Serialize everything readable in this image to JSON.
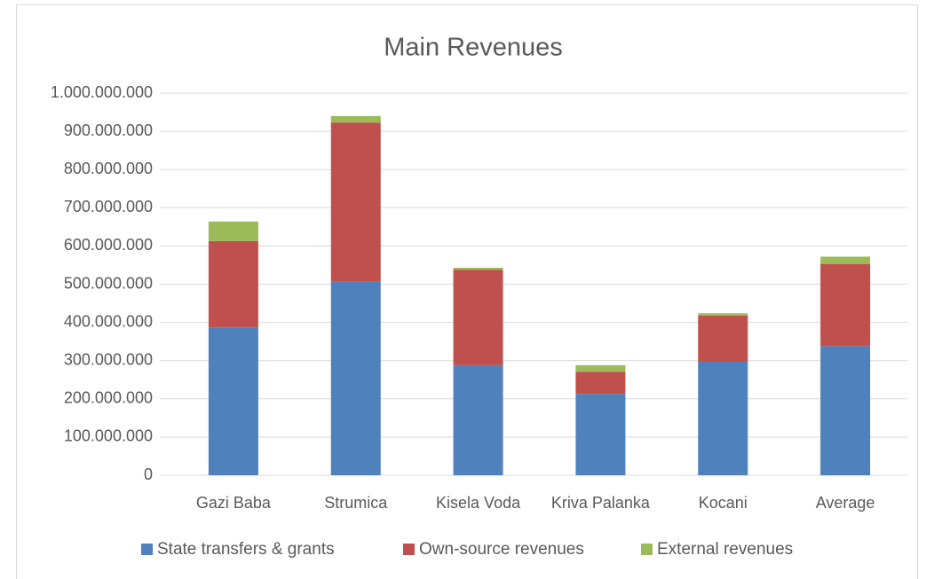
{
  "chart_data": {
    "type": "stacked_bar",
    "title": "Main Revenues",
    "categories": [
      "Gazi Baba",
      "Strumica",
      "Kisela Voda",
      "Kriva Palanka",
      "Kocani",
      "Average"
    ],
    "series": [
      {
        "name": "State transfers & grants",
        "color": "#4f81bd",
        "values": [
          387000000,
          508000000,
          288000000,
          213000000,
          297000000,
          338000000
        ]
      },
      {
        "name": "Own-source revenues",
        "color": "#c0504d",
        "values": [
          226000000,
          415000000,
          250000000,
          58000000,
          121000000,
          215000000
        ]
      },
      {
        "name": "External revenues",
        "color": "#9bbb59",
        "values": [
          51000000,
          17000000,
          5000000,
          17000000,
          6000000,
          19000000
        ]
      }
    ],
    "ylim": [
      0,
      1000000000
    ],
    "yticks": [
      0,
      {
        "value": 100000000,
        "label": "100.000.000"
      },
      {
        "value": 200000000,
        "label": "200.000.000"
      },
      {
        "value": 300000000,
        "label": "300.000.000"
      },
      {
        "value": 400000000,
        "label": "400.000.000"
      },
      {
        "value": 500000000,
        "label": "500.000.000"
      },
      {
        "value": 600000000,
        "label": "600.000.000"
      },
      {
        "value": 700000000,
        "label": "700.000.000"
      },
      {
        "value": 800000000,
        "label": "800.000.000"
      },
      {
        "value": 900000000,
        "label": "900.000.000"
      },
      {
        "value": 1000000000,
        "label": "1.000.000.000"
      }
    ],
    "grid": true,
    "legend": "bottom"
  }
}
